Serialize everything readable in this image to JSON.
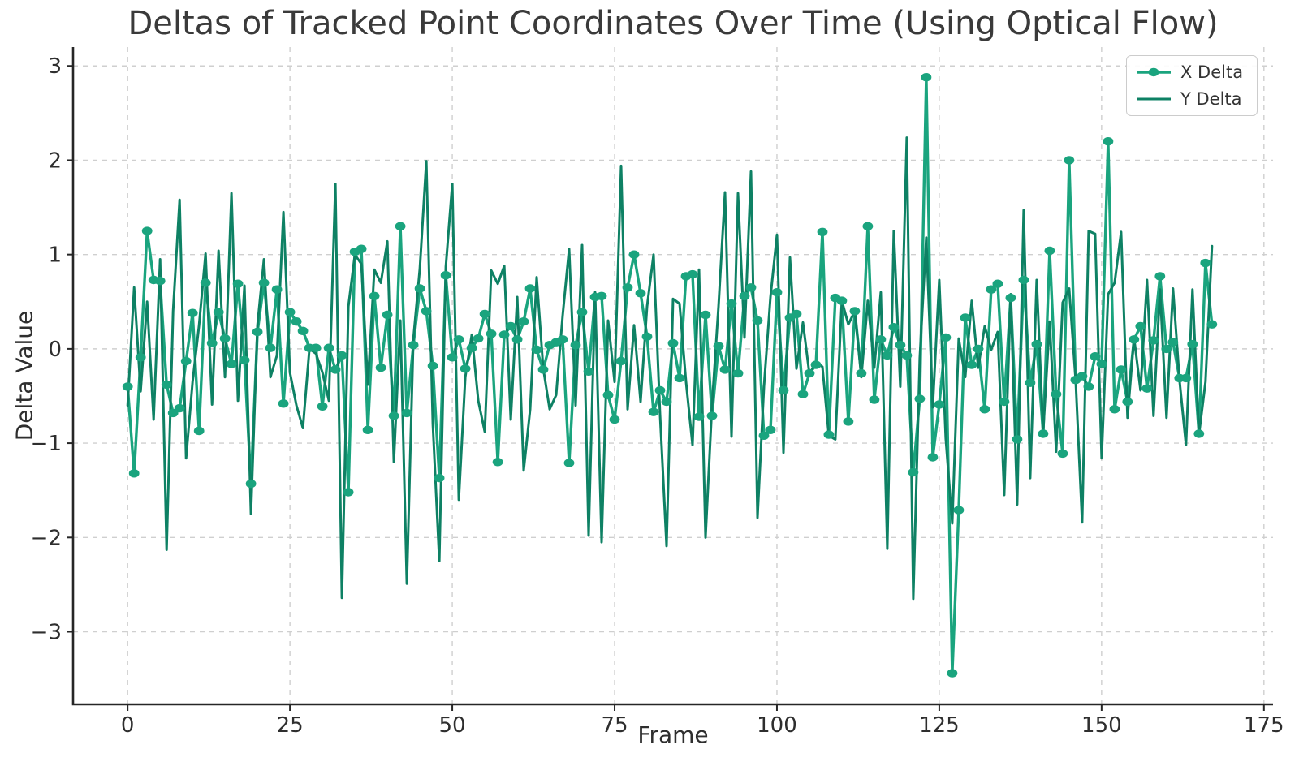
{
  "chart_data": {
    "type": "line",
    "title": "Deltas of Tracked Point Coordinates Over Time (Using Optical Flow)",
    "xlabel": "Frame",
    "ylabel": "Delta Value",
    "xlim": [
      -8.4,
      176.4
    ],
    "ylim": [
      -3.77,
      3.2
    ],
    "x_ticks": [
      0,
      25,
      50,
      75,
      100,
      125,
      150,
      175
    ],
    "x_tick_labels": [
      "0",
      "25",
      "50",
      "75",
      "100",
      "125",
      "150",
      "175"
    ],
    "y_ticks": [
      -3,
      -2,
      -1,
      0,
      1,
      2,
      3
    ],
    "y_tick_labels": [
      "−3",
      "−2",
      "−1",
      "0",
      "1",
      "2",
      "3"
    ],
    "grid": "dashed, both axes",
    "grid_color": "#cfcfcf",
    "spine_color": "#262626",
    "text_color": "#2e2e2e",
    "legend_position": "upper right",
    "x_description": "frame index, one sample per frame starting at 0",
    "series": [
      {
        "name": "X Delta",
        "color": "#1aa47e",
        "marker": "circle",
        "line_width": 3.4,
        "values": [
          -0.4,
          -1.32,
          -0.09,
          1.25,
          0.73,
          0.72,
          -0.38,
          -0.68,
          -0.63,
          -0.13,
          0.38,
          -0.87,
          0.7,
          0.06,
          0.39,
          0.11,
          -0.16,
          0.69,
          -0.12,
          -1.43,
          0.18,
          0.7,
          0.01,
          0.63,
          -0.58,
          0.39,
          0.29,
          0.19,
          0.01,
          0.01,
          -0.61,
          0.01,
          -0.22,
          -0.07,
          -1.52,
          1.03,
          1.06,
          -0.86,
          0.56,
          -0.2,
          0.36,
          -0.71,
          1.3,
          -0.68,
          0.04,
          0.64,
          0.4,
          -0.18,
          -1.37,
          0.78,
          -0.09,
          0.1,
          -0.21,
          0.01,
          0.11,
          0.37,
          0.16,
          -1.2,
          0.15,
          0.24,
          0.1,
          0.29,
          0.64,
          -0.01,
          -0.22,
          0.04,
          0.07,
          0.1,
          -1.21,
          0.04,
          0.39,
          -0.24,
          0.55,
          0.56,
          -0.49,
          -0.75,
          -0.13,
          0.65,
          1.0,
          0.59,
          0.13,
          -0.67,
          -0.44,
          -0.56,
          0.06,
          -0.31,
          0.77,
          0.79,
          -0.72,
          0.36,
          -0.71,
          0.03,
          -0.22,
          0.48,
          -0.26,
          0.56,
          0.65,
          0.3,
          -0.92,
          -0.86,
          0.6,
          -0.44,
          0.33,
          0.37,
          -0.48,
          -0.26,
          -0.17,
          1.24,
          -0.91,
          0.54,
          0.51,
          -0.77,
          0.4,
          -0.26,
          1.3,
          -0.54,
          0.1,
          -0.07,
          0.23,
          0.04,
          -0.07,
          -1.31,
          -0.53,
          2.88,
          -1.15,
          -0.59,
          0.12,
          -3.44,
          -1.71,
          0.33,
          -0.17,
          0.0,
          -0.64,
          0.63,
          0.69,
          -0.56,
          0.54,
          -0.96,
          0.73,
          -0.36,
          0.05,
          -0.9,
          1.04,
          -0.48,
          -1.11,
          2.0,
          -0.33,
          -0.29,
          -0.4,
          -0.08,
          -0.16,
          2.2,
          -0.64,
          -0.22,
          -0.56,
          0.1,
          0.24,
          -0.42,
          0.09,
          0.77,
          0.0,
          0.07,
          -0.31,
          -0.31,
          0.05,
          -0.9,
          0.91,
          0.26
        ]
      },
      {
        "name": "Y Delta",
        "color": "#0e8164",
        "marker": "none",
        "line_width": 3.0,
        "values": [
          -0.6,
          0.65,
          -0.45,
          0.5,
          -0.75,
          0.95,
          -2.13,
          0.4,
          1.58,
          -1.16,
          -0.35,
          0.25,
          1.01,
          -0.59,
          1.04,
          -0.3,
          1.65,
          -0.55,
          0.67,
          -1.75,
          0.25,
          0.95,
          -0.3,
          -0.07,
          1.45,
          -0.25,
          -0.6,
          -0.84,
          0.0,
          -0.05,
          -0.25,
          -0.55,
          1.75,
          -2.64,
          0.45,
          1.0,
          0.9,
          -0.38,
          0.84,
          0.7,
          1.14,
          -1.2,
          0.3,
          -2.49,
          0.1,
          0.85,
          1.99,
          -0.8,
          -2.25,
          0.87,
          1.75,
          -1.6,
          -0.3,
          0.15,
          -0.55,
          -0.88,
          0.83,
          0.69,
          0.88,
          -0.75,
          0.55,
          -1.29,
          -0.64,
          0.76,
          -0.2,
          -0.64,
          -0.49,
          0.35,
          1.06,
          -0.6,
          1.1,
          -1.98,
          0.6,
          -2.05,
          0.3,
          -0.35,
          1.94,
          -0.64,
          0.25,
          -0.56,
          0.45,
          1.0,
          -0.7,
          -2.09,
          0.53,
          0.48,
          -0.35,
          -1.02,
          0.84,
          -2.0,
          -0.6,
          0.45,
          1.66,
          -0.93,
          1.65,
          0.12,
          1.88,
          -1.79,
          -0.4,
          0.55,
          1.21,
          -1.1,
          0.97,
          -0.21,
          0.28,
          -0.27,
          -0.14,
          -0.19,
          -0.92,
          -0.96,
          0.51,
          0.26,
          0.4,
          -0.3,
          0.51,
          -0.2,
          0.6,
          -2.12,
          1.25,
          -0.4,
          2.24,
          -2.65,
          -0.1,
          1.18,
          -0.62,
          0.73,
          -0.95,
          -1.85,
          0.11,
          -0.3,
          0.51,
          -0.2,
          0.24,
          -0.01,
          0.18,
          -1.55,
          0.58,
          -1.65,
          1.47,
          -1.37,
          0.73,
          -0.88,
          0.29,
          -1.09,
          0.49,
          0.64,
          -0.33,
          -1.84,
          1.25,
          1.22,
          -1.16,
          0.58,
          0.7,
          1.24,
          -0.73,
          0.12,
          -0.44,
          0.73,
          -0.71,
          0.63,
          -0.73,
          0.64,
          -0.33,
          -1.02,
          0.63,
          -0.91,
          -0.35,
          1.09
        ]
      }
    ],
    "legend": {
      "entries": [
        "X Delta",
        "Y Delta"
      ]
    }
  }
}
